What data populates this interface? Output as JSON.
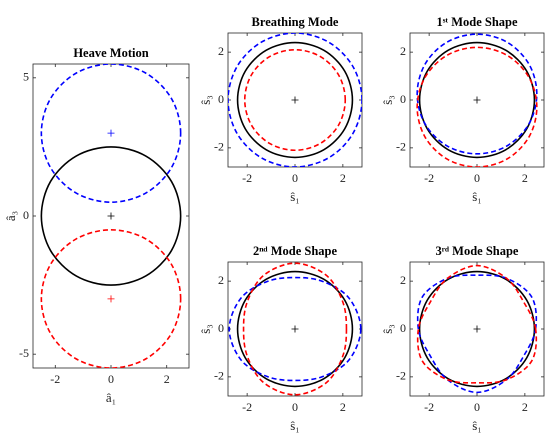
{
  "chart_data": [
    {
      "type": "line",
      "title": "Heave Motion",
      "xlabel": "â₁",
      "ylabel": "â₃",
      "xlim": [
        -2.8,
        2.8
      ],
      "ylim": [
        -5.5,
        5.5
      ],
      "xticks": [
        -2,
        0,
        2
      ],
      "yticks": [
        -5,
        0,
        5
      ],
      "series": [
        {
          "color": "#000000",
          "dash": false,
          "x": [
            2.5,
            2.17,
            1.25,
            0,
            -1.25,
            -2.17,
            -2.5,
            -2.17,
            -1.25,
            0,
            1.25,
            2.17,
            2.5
          ],
          "values": [
            0,
            1.25,
            2.17,
            2.5,
            2.17,
            1.25,
            0,
            -1.25,
            -2.17,
            -2.5,
            -2.17,
            -1.25,
            0
          ]
        },
        {
          "color": "#0000ff",
          "dash": true,
          "x": [
            2.5,
            2.17,
            1.25,
            0,
            -1.25,
            -2.17,
            -2.5,
            -2.17,
            -1.25,
            0,
            1.25,
            2.17,
            2.5
          ],
          "values": [
            3,
            4.25,
            5.17,
            5.5,
            5.17,
            4.25,
            3,
            1.75,
            0.83,
            0.5,
            0.83,
            1.75,
            3
          ]
        },
        {
          "color": "#ff0000",
          "dash": true,
          "x": [
            2.5,
            2.17,
            1.25,
            0,
            -1.25,
            -2.17,
            -2.5,
            -2.17,
            -1.25,
            0,
            1.25,
            2.17,
            2.5
          ],
          "values": [
            -3,
            -1.75,
            -0.83,
            -0.5,
            -0.83,
            -1.75,
            -3,
            -4.25,
            -5.17,
            -5.5,
            -5.17,
            -4.25,
            -3
          ]
        }
      ],
      "centers": [
        {
          "color": "#000000",
          "x": [
            0
          ],
          "values": [
            0
          ]
        },
        {
          "color": "#0000ff",
          "x": [
            0
          ],
          "values": [
            3
          ]
        },
        {
          "color": "#ff0000",
          "x": [
            0
          ],
          "values": [
            -3
          ]
        }
      ]
    },
    {
      "type": "line",
      "title": "Breathing Mode",
      "xlabel": "ŝ₁",
      "ylabel": "ŝ₃",
      "xlim": [
        -2.8,
        2.8
      ],
      "ylim": [
        -2.8,
        2.8
      ],
      "xticks": [
        -2,
        0,
        2
      ],
      "yticks": [
        -2,
        0,
        2
      ],
      "series": [
        {
          "color": "#000000",
          "dash": false,
          "x": [
            2.4,
            2.08,
            1.2,
            0,
            -1.2,
            -2.08,
            -2.4,
            -2.08,
            -1.2,
            0,
            1.2,
            2.08,
            2.4
          ],
          "values": [
            0,
            1.2,
            2.08,
            2.4,
            2.08,
            1.2,
            0,
            -1.2,
            -2.08,
            -2.4,
            -2.08,
            -1.2,
            0
          ]
        },
        {
          "color": "#0000ff",
          "dash": true,
          "x": [
            2.8,
            2.42,
            1.4,
            0,
            -1.4,
            -2.42,
            -2.8,
            -2.42,
            -1.4,
            0,
            1.4,
            2.42,
            2.8
          ],
          "values": [
            0,
            1.4,
            2.42,
            2.8,
            2.42,
            1.4,
            0,
            -1.4,
            -2.42,
            -2.8,
            -2.42,
            -1.4,
            0
          ]
        },
        {
          "color": "#ff0000",
          "dash": true,
          "x": [
            2.1,
            1.82,
            1.05,
            0,
            -1.05,
            -1.82,
            -2.1,
            -1.82,
            -1.05,
            0,
            1.05,
            1.82,
            2.1
          ],
          "values": [
            0,
            1.05,
            1.82,
            2.1,
            1.82,
            1.05,
            0,
            -1.05,
            -1.82,
            -2.1,
            -1.82,
            -1.05,
            0
          ]
        }
      ],
      "centers": [
        {
          "color": "#000000",
          "x": [
            0
          ],
          "values": [
            0
          ]
        }
      ]
    },
    {
      "type": "line",
      "title": "1ˢᵗ Mode Shape",
      "xlabel": "ŝ₁",
      "ylabel": "ŝ₃",
      "xlim": [
        -2.8,
        2.8
      ],
      "ylim": [
        -2.8,
        2.8
      ],
      "xticks": [
        -2,
        0,
        2
      ],
      "yticks": [
        -2,
        0,
        2
      ],
      "series": [
        {
          "color": "#000000",
          "dash": false,
          "x": [
            2.4,
            2.08,
            1.2,
            0,
            -1.2,
            -2.08,
            -2.4,
            -2.08,
            -1.2,
            0,
            1.2,
            2.08,
            2.4
          ],
          "values": [
            0,
            1.2,
            2.08,
            2.4,
            2.08,
            1.2,
            0,
            -1.2,
            -2.08,
            -2.4,
            -2.08,
            -1.2,
            0
          ]
        },
        {
          "color": "#0000ff",
          "dash": true,
          "x": [
            2.5,
            2.17,
            1.25,
            0,
            -1.25,
            -2.17,
            -2.5,
            -2.17,
            -1.25,
            0,
            1.25,
            2.17,
            2.5
          ],
          "values": [
            0.25,
            1.5,
            2.42,
            2.75,
            2.42,
            1.5,
            0.25,
            -1,
            -1.92,
            -2.25,
            -1.92,
            -1,
            0.25
          ]
        },
        {
          "color": "#ff0000",
          "dash": true,
          "x": [
            2.5,
            2.17,
            1.25,
            0,
            -1.25,
            -2.17,
            -2.5,
            -2.17,
            -1.25,
            0,
            1.25,
            2.17,
            2.5
          ],
          "values": [
            -0.3,
            0.95,
            1.87,
            2.2,
            1.87,
            0.95,
            -0.3,
            -1.55,
            -2.47,
            -2.8,
            -2.47,
            -1.55,
            -0.3
          ]
        }
      ],
      "centers": [
        {
          "color": "#000000",
          "x": [
            0
          ],
          "values": [
            0
          ]
        }
      ]
    },
    {
      "type": "line",
      "title": "2ⁿᵈ Mode Shape",
      "xlabel": "ŝ₁",
      "ylabel": "ŝ₃",
      "xlim": [
        -2.8,
        2.8
      ],
      "ylim": [
        -2.8,
        2.8
      ],
      "xticks": [
        -2,
        0,
        2
      ],
      "yticks": [
        -2,
        0,
        2
      ],
      "series": [
        {
          "color": "#000000",
          "dash": false,
          "x": [
            2.4,
            2.08,
            1.2,
            0,
            -1.2,
            -2.08,
            -2.4,
            -2.08,
            -1.2,
            0,
            1.2,
            2.08,
            2.4
          ],
          "values": [
            0,
            1.2,
            2.08,
            2.4,
            2.08,
            1.2,
            0,
            -1.2,
            -2.08,
            -2.4,
            -2.08,
            -1.2,
            0
          ]
        },
        {
          "color": "#0000ff",
          "dash": true,
          "x": [
            2.75,
            2.25,
            1.15,
            0,
            -1.15,
            -2.25,
            -2.75,
            -2.25,
            -1.15,
            0,
            1.15,
            2.25,
            2.75
          ],
          "values": [
            0,
            1.3,
            1.99,
            2.15,
            1.99,
            1.3,
            0,
            -1.3,
            -1.99,
            -2.15,
            -1.99,
            -1.3,
            0
          ]
        },
        {
          "color": "#ff0000",
          "dash": true,
          "x": [
            2.15,
            1.99,
            1.3,
            0,
            -1.3,
            -1.99,
            -2.15,
            -1.99,
            -1.3,
            0,
            1.3,
            1.99,
            2.15
          ],
          "values": [
            0,
            1.15,
            2.25,
            2.75,
            2.25,
            1.15,
            0,
            -1.15,
            -2.25,
            -2.75,
            -2.25,
            -1.15,
            0
          ]
        }
      ],
      "centers": [
        {
          "color": "#000000",
          "x": [
            0
          ],
          "values": [
            0
          ]
        }
      ]
    },
    {
      "type": "line",
      "title": "3ʳᵈ Mode Shape",
      "xlabel": "ŝ₁",
      "ylabel": "ŝ₃",
      "xlim": [
        -2.8,
        2.8
      ],
      "ylim": [
        -2.8,
        2.8
      ],
      "xticks": [
        -2,
        0,
        2
      ],
      "yticks": [
        -2,
        0,
        2
      ],
      "series": [
        {
          "color": "#000000",
          "dash": false,
          "x": [
            2.4,
            2.08,
            1.2,
            0,
            -1.2,
            -2.08,
            -2.4,
            -2.08,
            -1.2,
            0,
            1.2,
            2.08,
            2.4
          ],
          "values": [
            0,
            1.2,
            2.08,
            2.4,
            2.08,
            1.2,
            0,
            -1.2,
            -2.08,
            -2.4,
            -2.08,
            -1.2,
            0
          ]
        },
        {
          "color": "#0000ff",
          "dash": true,
          "x": [
            2.45,
            2.29,
            1.23,
            0,
            -1.23,
            -2.29,
            -2.45,
            -1.95,
            -1.23,
            0,
            1.23,
            1.95,
            2.45
          ],
          "values": [
            0,
            1.33,
            2.12,
            2.25,
            2.12,
            1.33,
            0,
            -1.13,
            -2.12,
            -2.65,
            -2.12,
            -1.13,
            0
          ]
        },
        {
          "color": "#ff0000",
          "dash": true,
          "x": [
            2.45,
            1.95,
            1.23,
            0,
            -1.23,
            -1.95,
            -2.45,
            -2.29,
            -1.23,
            0,
            1.23,
            2.29,
            2.45
          ],
          "values": [
            0,
            1.13,
            2.12,
            2.65,
            2.12,
            1.13,
            0,
            -1.33,
            -2.12,
            -2.25,
            -2.12,
            -1.33,
            0
          ]
        }
      ],
      "centers": [
        {
          "color": "#000000",
          "x": [
            0
          ],
          "values": [
            0
          ]
        }
      ]
    }
  ]
}
